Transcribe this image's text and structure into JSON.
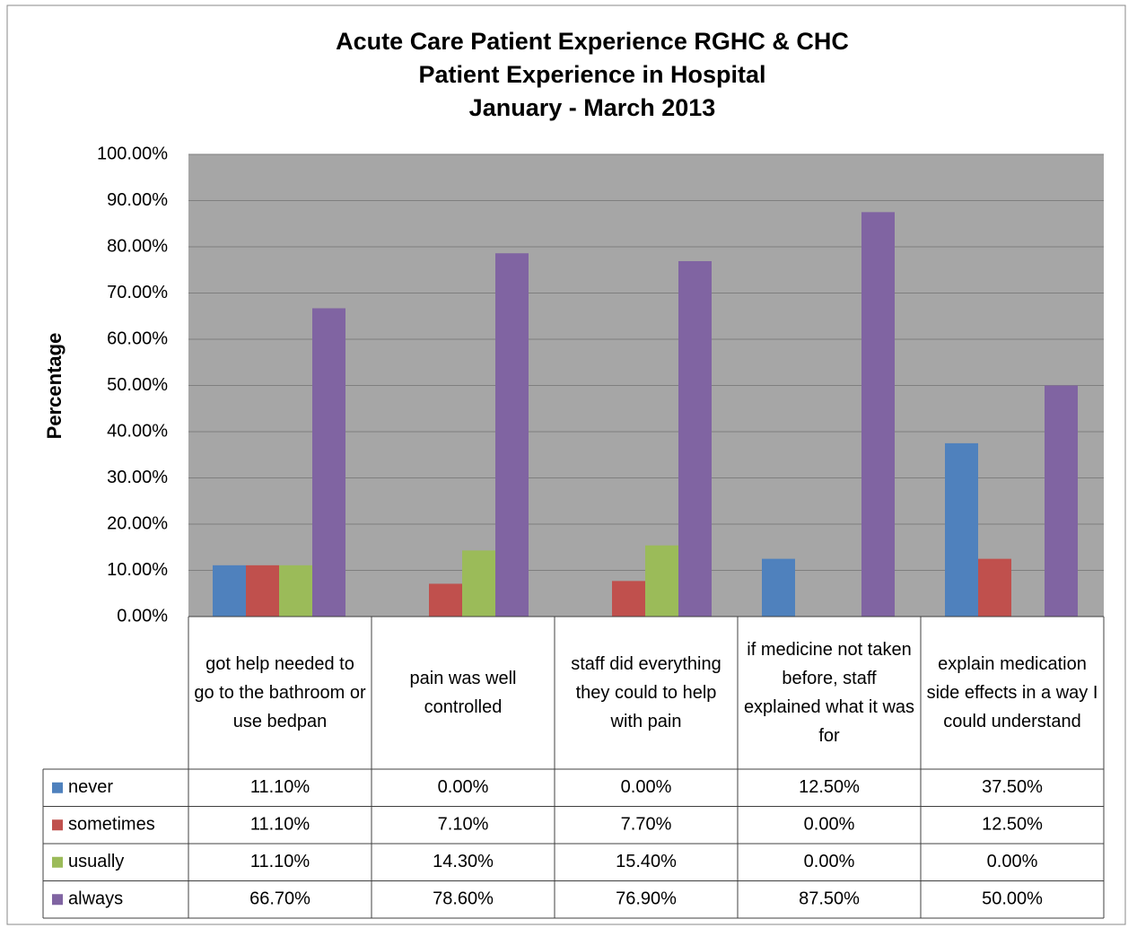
{
  "chart_data": {
    "type": "bar",
    "title": "Acute Care Patient Experience RGHC & CHC",
    "subtitle": [
      "Patient Experience in Hospital",
      "January - March 2013"
    ],
    "ylabel": "Percentage",
    "categories": [
      "got help needed to go to the bathroom or use bedpan",
      "pain was well controlled",
      "staff did everything they could to help with pain",
      "if medicine not taken before, staff explained what it was for",
      "explain medication side effects in a way I could understand"
    ],
    "series": [
      {
        "name": "never",
        "color": "#4f81bd",
        "values": [
          11.1,
          0,
          0,
          12.5,
          37.5
        ],
        "value_labels": [
          "11.10%",
          "0.00%",
          "0.00%",
          "12.50%",
          "37.50%"
        ]
      },
      {
        "name": "sometimes",
        "color": "#c0504d",
        "values": [
          11.1,
          7.1,
          7.7,
          0,
          12.5
        ],
        "value_labels": [
          "11.10%",
          "7.10%",
          "7.70%",
          "0.00%",
          "12.50%"
        ]
      },
      {
        "name": "usually",
        "color": "#9bbb59",
        "values": [
          11.1,
          14.3,
          15.4,
          0,
          0
        ],
        "value_labels": [
          "11.10%",
          "14.30%",
          "15.40%",
          "0.00%",
          "0.00%"
        ]
      },
      {
        "name": "always",
        "color": "#8064a2",
        "values": [
          66.7,
          78.6,
          76.9,
          87.5,
          50
        ],
        "value_labels": [
          "66.70%",
          "78.60%",
          "76.90%",
          "87.50%",
          "50.00%"
        ]
      }
    ],
    "ylim": [
      0,
      100
    ],
    "yticks": [
      {
        "value": 0,
        "label": "0.00%"
      },
      {
        "value": 10,
        "label": "10.00%"
      },
      {
        "value": 20,
        "label": "20.00%"
      },
      {
        "value": 30,
        "label": "30.00%"
      },
      {
        "value": 40,
        "label": "40.00%"
      },
      {
        "value": 50,
        "label": "50.00%"
      },
      {
        "value": 60,
        "label": "60.00%"
      },
      {
        "value": 70,
        "label": "70.00%"
      },
      {
        "value": 80,
        "label": "80.00%"
      },
      {
        "value": 90,
        "label": "90.00%"
      },
      {
        "value": 100,
        "label": "100.00%"
      }
    ],
    "grid": true,
    "legend": "table"
  }
}
